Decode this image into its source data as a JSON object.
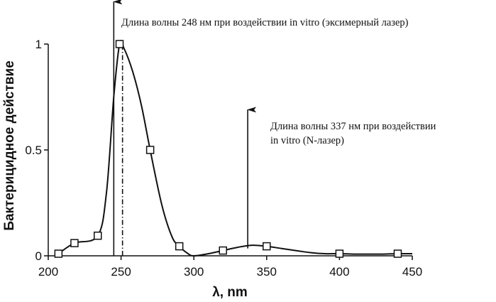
{
  "chart_data": {
    "type": "line",
    "title": "",
    "xlabel": "λ, nm",
    "ylabel": "Бактерицидное действие",
    "xlim": [
      200,
      450
    ],
    "ylim": [
      0,
      1
    ],
    "x_ticks": [
      200,
      250,
      300,
      350,
      400,
      450
    ],
    "y_ticks": [
      0,
      0.5,
      1
    ],
    "y_tick_labels": [
      "0",
      "0.5",
      "1"
    ],
    "grid": false,
    "series": [
      {
        "marker": "open-square",
        "x": [
          207,
          218,
          234,
          249,
          270,
          290,
          320,
          350,
          400,
          440
        ],
        "y": [
          0.01,
          0.06,
          0.095,
          1.0,
          0.5,
          0.045,
          0.025,
          0.045,
          0.01,
          0.01
        ]
      }
    ],
    "smooth_curve": {
      "x": [
        205,
        207,
        218,
        234,
        240,
        245,
        249,
        252,
        258,
        264,
        270,
        278,
        285,
        290,
        296,
        300,
        310,
        320,
        330,
        340,
        350,
        360,
        370,
        380,
        390,
        400,
        410,
        420,
        430,
        440,
        450
      ],
      "y": [
        0.0,
        0.01,
        0.06,
        0.095,
        0.3,
        0.75,
        1.0,
        0.98,
        0.87,
        0.71,
        0.5,
        0.24,
        0.09,
        0.045,
        0.01,
        0.0,
        0.01,
        0.025,
        0.04,
        0.05,
        0.045,
        0.035,
        0.025,
        0.015,
        0.01,
        0.01,
        0.008,
        0.008,
        0.008,
        0.01,
        0.01
      ]
    },
    "dashdot_line": {
      "x": 251,
      "y_from": 0,
      "y_to": 1.0
    },
    "annotations": [
      {
        "lines": [
          "Длина волны 248 нм при воздействии in vitro (эксимерный лазер)"
        ],
        "arrow_x": 245,
        "arrow_y_top": 1.2,
        "arrow_y_bottom": 0
      },
      {
        "lines": [
          "Длина волны 337 нм при воздействии",
          "in vitro (N-лазер)"
        ],
        "arrow_x": 337,
        "arrow_y_top": 0.69,
        "arrow_y_bottom": 0.035
      }
    ]
  }
}
